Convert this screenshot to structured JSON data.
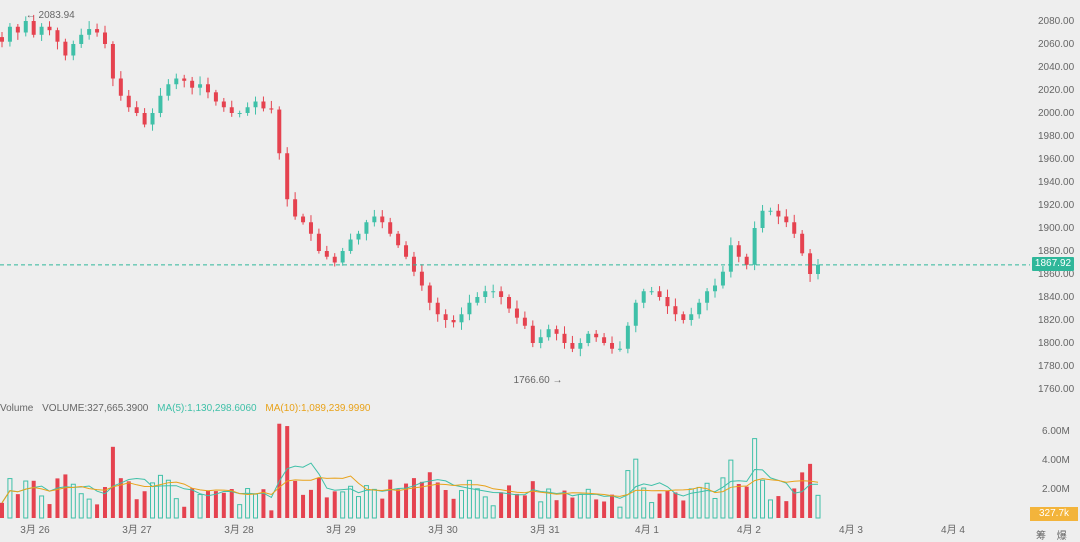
{
  "chart_data": {
    "type": "candlestick",
    "price_axis": {
      "ticks": [
        2080.0,
        2060.0,
        2040.0,
        2020.0,
        2000.0,
        1980.0,
        1960.0,
        1940.0,
        1920.0,
        1900.0,
        1880.0,
        1860.0,
        1840.0,
        1820.0,
        1800.0,
        1780.0,
        1760.0
      ],
      "range": [
        1752,
        2100
      ]
    },
    "x_axis": {
      "labels": [
        "3月 26",
        "3月 27",
        "3月 28",
        "3月 29",
        "3月 30",
        "3月 31",
        "4月 1",
        "4月 2",
        "4月 3",
        "4月 4"
      ]
    },
    "annotations": {
      "high": "2083.94",
      "low": "1766.60",
      "last_price": 1867.92,
      "last_price_label": "1867.92"
    },
    "price_points": [
      2062,
      2075,
      2070,
      2080,
      2068,
      2075,
      2072,
      2062,
      2050,
      2060,
      2068,
      2073,
      2070,
      2060,
      2030,
      2015,
      2005,
      2000,
      1990,
      2000,
      2015,
      2025,
      2030,
      2028,
      2022,
      2025,
      2018,
      2010,
      2005,
      2000,
      2000,
      2005,
      2010,
      2004,
      2003,
      1965,
      1925,
      1910,
      1905,
      1895,
      1880,
      1875,
      1870,
      1880,
      1890,
      1895,
      1905,
      1910,
      1905,
      1895,
      1885,
      1875,
      1862,
      1850,
      1835,
      1825,
      1820,
      1818,
      1825,
      1835,
      1840,
      1845,
      1845,
      1840,
      1830,
      1822,
      1815,
      1800,
      1805,
      1812,
      1808,
      1800,
      1795,
      1800,
      1808,
      1805,
      1800,
      1795,
      1795,
      1815,
      1835,
      1845,
      1845,
      1840,
      1832,
      1825,
      1820,
      1825,
      1835,
      1845,
      1850,
      1862,
      1885,
      1875,
      1868,
      1900,
      1915,
      1915,
      1910,
      1905,
      1895,
      1878,
      1860,
      1868
    ],
    "volume": {
      "title": "Volume",
      "volume_label": "VOLUME:327,665.3900",
      "ma5_label": "MA(5):1,130,298.6060",
      "ma10_label": "MA(10):1,089,239.9990",
      "axis_ticks": [
        "6.00M",
        "4.00M",
        "2.00M"
      ],
      "current_label": "327.7k"
    },
    "colors": {
      "up": "#3fc0a8",
      "down": "#e5424f",
      "ma5": "#3fc0a8",
      "ma10": "#e8a21a",
      "last": "#2fb79a"
    }
  },
  "footer": {
    "icon1": "筹",
    "icon2": "爆"
  }
}
